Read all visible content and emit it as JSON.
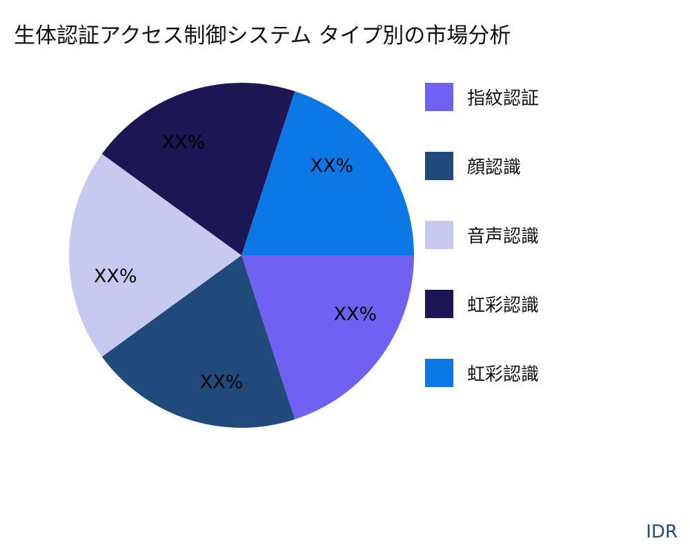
{
  "chart_data": {
    "type": "pie",
    "title": "生体認証アクセス制御システム タイプ別の市場分析",
    "slices": [
      {
        "name": "指紋認証",
        "value": 20,
        "label": "XX%",
        "color": "#6f62f2"
      },
      {
        "name": "顔認識",
        "value": 20,
        "label": "XX%",
        "color": "#1f4a7a"
      },
      {
        "name": "音声認識",
        "value": 20,
        "label": "XX%",
        "color": "#c8c9f0"
      },
      {
        "name": "虹彩認識",
        "value": 20,
        "label": "XX%",
        "color": "#1c1654"
      },
      {
        "name": "虹彩認識",
        "value": 20,
        "label": "XX%",
        "color": "#0b78e6"
      }
    ],
    "legend_position": "right"
  },
  "brand": "IDR"
}
